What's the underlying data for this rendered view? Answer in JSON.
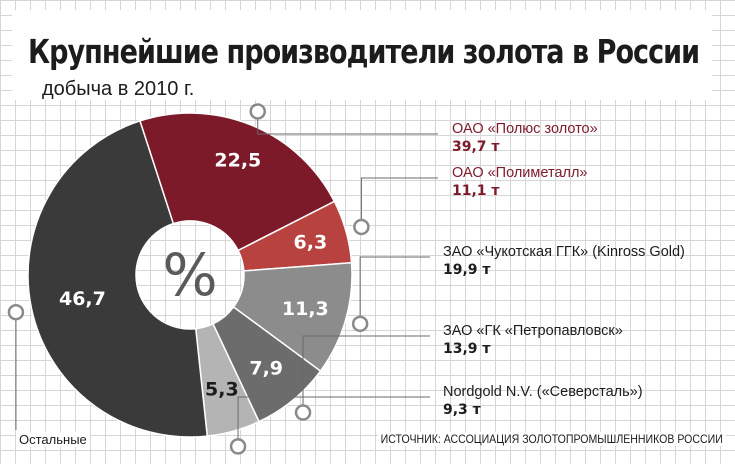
{
  "title": "Крупнейшие производители золота в России",
  "subtitle": "добыча в 2010 г.",
  "center_symbol": "%",
  "others_label": "Остальные",
  "source": "ИСТОЧНИК: АССОЦИАЦИЯ ЗОЛОТОПРОМЫШЛЕННИКОВ РОССИИ",
  "colors": {
    "dark_red": "#7d1a2a",
    "red": "#b8423f",
    "gray_mid": "#8c8c8c",
    "gray_dark": "#6c6c6c",
    "gray_light": "#b4b4b4",
    "others": "#3a3a3a"
  },
  "chart_data": {
    "type": "pie",
    "title": "Крупнейшие производители золота в России",
    "subtitle": "добыча в 2010 г.",
    "unit": "%",
    "slices": [
      {
        "label": "ОАО «Полюс золото»",
        "value": 22.5,
        "display": "22,5",
        "amount": "39,7 т",
        "color": "#7d1a2a",
        "text_color": "#7d1a2a"
      },
      {
        "label": "ОАО «Полиметалл»",
        "value": 6.3,
        "display": "6,3",
        "amount": "11,1 т",
        "color": "#b8423f",
        "text_color": "#7d1a2a"
      },
      {
        "label": "ЗАО «Чукотская ГГК» (Kinross Gold)",
        "value": 11.3,
        "display": "11,3",
        "amount": "19,9 т",
        "color": "#8c8c8c",
        "text_color": "#1c1c1c"
      },
      {
        "label": "ЗАО «ГК «Петропавловск»",
        "value": 7.9,
        "display": "7,9",
        "amount": "13,9 т",
        "color": "#6c6c6c",
        "text_color": "#1c1c1c"
      },
      {
        "label": "Nordgold N.V. («Северсталь»)",
        "value": 5.3,
        "display": "5,3",
        "amount": "9,3 т",
        "color": "#b4b4b4",
        "text_color": "#1c1c1c"
      },
      {
        "label": "Остальные",
        "value": 46.7,
        "display": "46,7",
        "color": "#3a3a3a"
      }
    ]
  }
}
